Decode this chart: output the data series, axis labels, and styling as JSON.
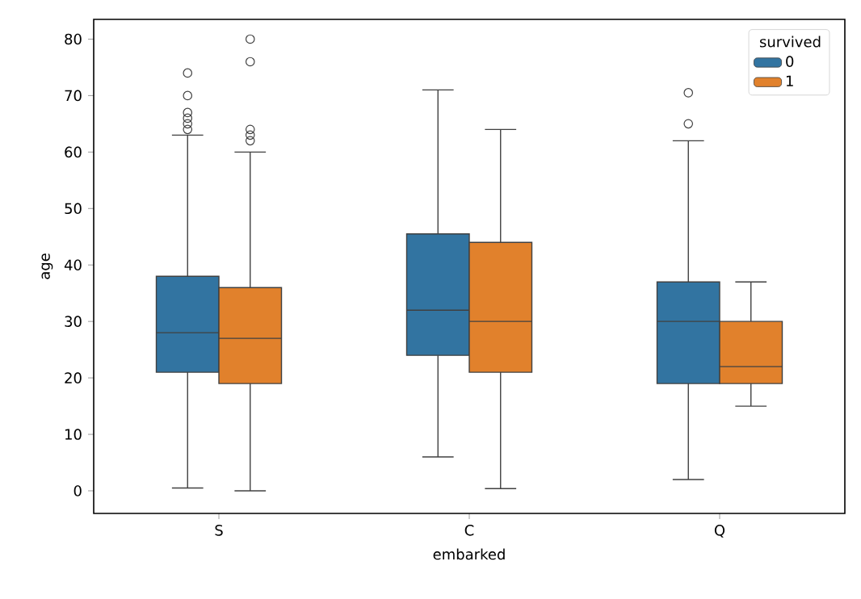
{
  "chart_data": {
    "type": "box",
    "xlabel": "embarked",
    "ylabel": "age",
    "legend_title": "survived",
    "categories": [
      "S",
      "C",
      "Q"
    ],
    "series": [
      {
        "name": "0",
        "color": "#3274a1",
        "boxes": [
          {
            "low": 0.5,
            "q1": 21,
            "median": 28,
            "q3": 38,
            "high": 63,
            "outliers": [
              64,
              65,
              66,
              67,
              70,
              74
            ]
          },
          {
            "low": 6,
            "q1": 24,
            "median": 32,
            "q3": 45.5,
            "high": 71
          },
          {
            "low": 2,
            "q1": 19,
            "median": 30,
            "q3": 37,
            "high": 62,
            "outliers": [
              65,
              70.5
            ]
          }
        ]
      },
      {
        "name": "1",
        "color": "#e1812c",
        "boxes": [
          {
            "low": 0,
            "q1": 19,
            "median": 27,
            "q3": 36,
            "high": 60,
            "outliers": [
              62,
              63,
              64,
              76,
              80
            ]
          },
          {
            "low": 0.4,
            "q1": 21,
            "median": 30,
            "q3": 44,
            "high": 64
          },
          {
            "low": 15,
            "q1": 19,
            "median": 22,
            "q3": 30,
            "high": 37
          }
        ]
      }
    ],
    "ylim": [
      -4,
      83.5
    ],
    "yticks": [
      0,
      10,
      20,
      30,
      40,
      50,
      60,
      70,
      80
    ],
    "legend": "top right",
    "marker": "circle",
    "grid": false
  }
}
